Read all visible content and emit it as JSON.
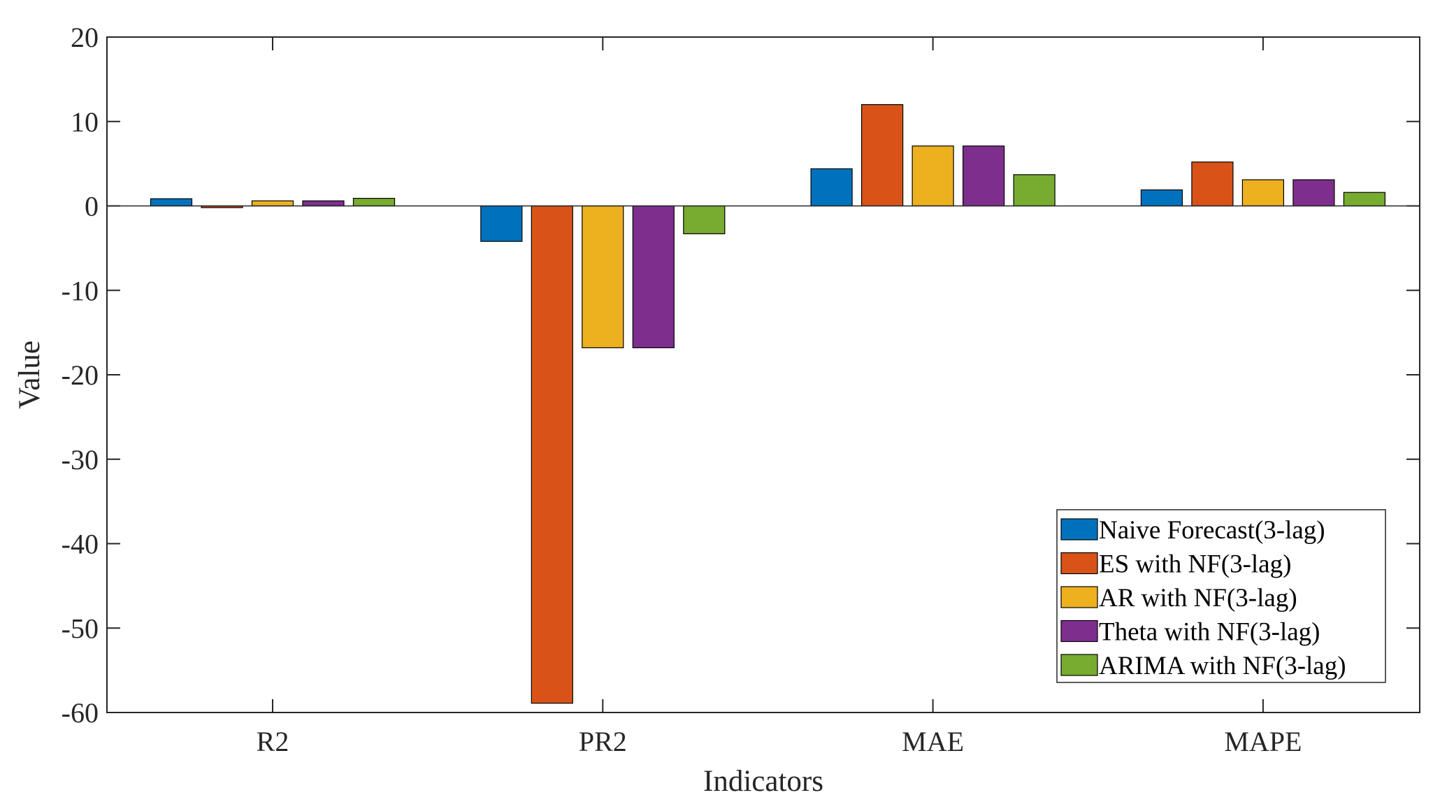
{
  "chart_data": {
    "type": "bar",
    "title": "",
    "xlabel": "Indicators",
    "ylabel": "Value",
    "ylim": [
      -60,
      20
    ],
    "yticks": [
      20,
      10,
      0,
      -10,
      -20,
      -30,
      -40,
      -50,
      -60
    ],
    "ytick_labels": [
      "20",
      "10",
      "0",
      "-10",
      "-20",
      "-30",
      "-40",
      "-50",
      "-60"
    ],
    "categories": [
      "R2",
      "PR2",
      "MAE",
      "MAPE"
    ],
    "legend_position": "bottom-right",
    "grid": false,
    "series": [
      {
        "name": "Naive Forecast(3-lag)",
        "color": "#0072BD",
        "values": [
          0.85,
          -4.2,
          4.4,
          1.9
        ]
      },
      {
        "name": "ES with NF(3-lag)",
        "color": "#D95319",
        "values": [
          -0.2,
          -58.9,
          12.0,
          5.2
        ]
      },
      {
        "name": "AR with NF(3-lag)",
        "color": "#EDB120",
        "values": [
          0.6,
          -16.8,
          7.1,
          3.1
        ]
      },
      {
        "name": "Theta with NF(3-lag)",
        "color": "#7E2F8E",
        "values": [
          0.6,
          -16.8,
          7.1,
          3.1
        ]
      },
      {
        "name": "ARIMA with NF(3-lag)",
        "color": "#77AC30",
        "values": [
          0.9,
          -3.3,
          3.7,
          1.6
        ]
      }
    ]
  }
}
